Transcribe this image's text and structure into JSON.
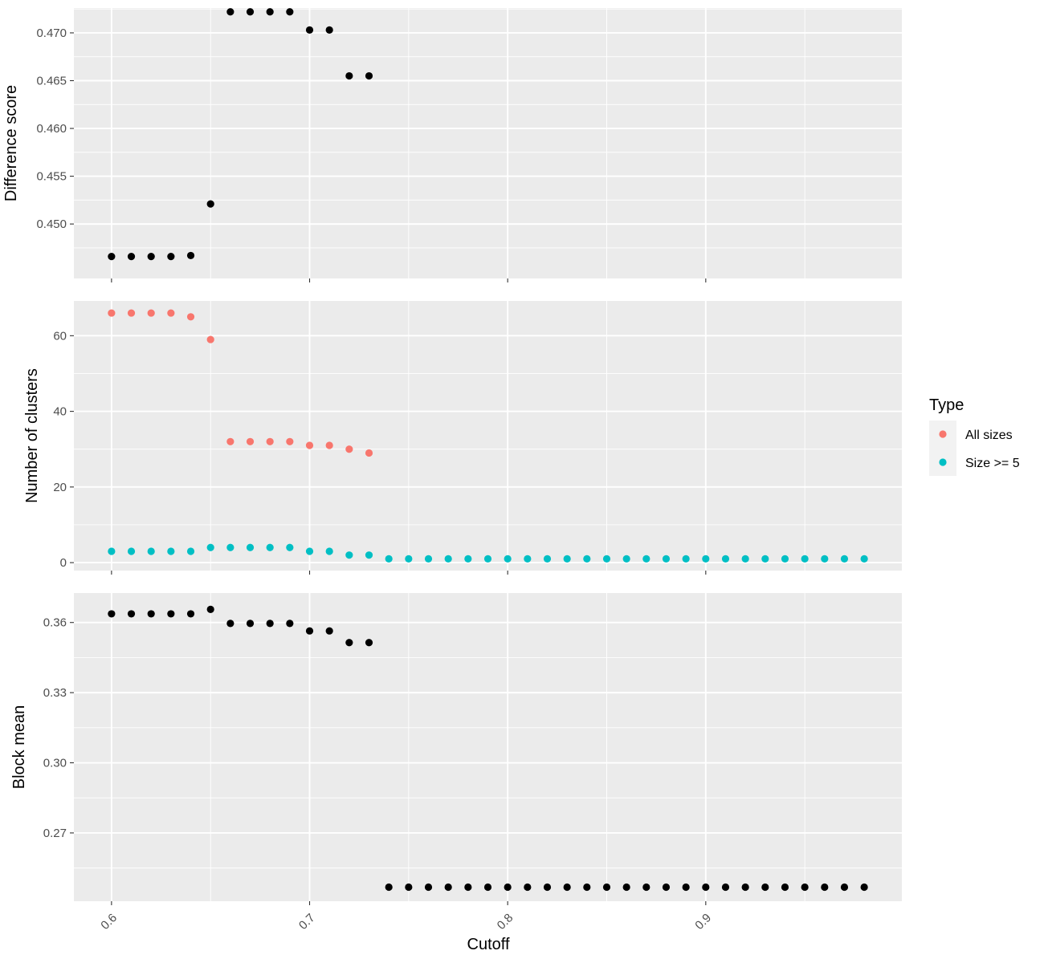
{
  "chart_data": {
    "type": "scatter",
    "xlabel": "Cutoff",
    "x_ticks": [
      0.6,
      0.7,
      0.8,
      0.9
    ],
    "x_tick_labels": [
      "0.6",
      "0.7",
      "0.8",
      "0.9"
    ],
    "xlim": [
      0.581,
      0.999
    ],
    "grid": true,
    "background": "#EBEBEB",
    "legend": {
      "title": "Type",
      "placement": "right",
      "entries": [
        {
          "label": "All sizes",
          "color": "#F8766D"
        },
        {
          "label": "Size >= 5",
          "color": "#00BFC4"
        }
      ]
    },
    "panels": [
      {
        "ylabel": "Difference score",
        "ylim": [
          0.4443,
          0.4726
        ],
        "y_ticks": [
          0.45,
          0.455,
          0.46,
          0.465,
          0.47
        ],
        "y_tick_labels": [
          "0.450",
          "0.455",
          "0.460",
          "0.465",
          "0.470"
        ],
        "series": [
          {
            "color": "#000000",
            "x": [
              0.6,
              0.61,
              0.62,
              0.63,
              0.64,
              0.65,
              0.66,
              0.67,
              0.68,
              0.69,
              0.7,
              0.71,
              0.72,
              0.73
            ],
            "y": [
              0.4466,
              0.4466,
              0.4466,
              0.4466,
              0.4467,
              0.4521,
              0.4722,
              0.4722,
              0.4722,
              0.4722,
              0.4703,
              0.4703,
              0.4655,
              0.4655
            ]
          }
        ]
      },
      {
        "ylabel": "Number of clusters",
        "ylim": [
          -2.1,
          69.2
        ],
        "y_ticks": [
          0,
          20,
          40,
          60
        ],
        "y_tick_labels": [
          "0",
          "20",
          "40",
          "60"
        ],
        "series": [
          {
            "name": "All sizes",
            "color": "#F8766D",
            "x": [
              0.6,
              0.61,
              0.62,
              0.63,
              0.64,
              0.65,
              0.66,
              0.67,
              0.68,
              0.69,
              0.7,
              0.71,
              0.72,
              0.73
            ],
            "y": [
              66,
              66,
              66,
              66,
              65,
              59,
              32,
              32,
              32,
              32,
              31,
              31,
              30,
              29
            ]
          },
          {
            "name": "Size >= 5",
            "color": "#00BFC4",
            "x": [
              0.6,
              0.61,
              0.62,
              0.63,
              0.64,
              0.65,
              0.66,
              0.67,
              0.68,
              0.69,
              0.7,
              0.71,
              0.72,
              0.73,
              0.74,
              0.75,
              0.76,
              0.77,
              0.78,
              0.79,
              0.8,
              0.81,
              0.82,
              0.83,
              0.84,
              0.85,
              0.86,
              0.87,
              0.88,
              0.89,
              0.9,
              0.91,
              0.92,
              0.93,
              0.94,
              0.95,
              0.96,
              0.97,
              0.98
            ],
            "y": [
              3,
              3,
              3,
              3,
              3,
              4,
              4,
              4,
              4,
              4,
              3,
              3,
              2,
              2,
              1,
              1,
              1,
              1,
              1,
              1,
              1,
              1,
              1,
              1,
              1,
              1,
              1,
              1,
              1,
              1,
              1,
              1,
              1,
              1,
              1,
              1,
              1,
              1,
              1
            ]
          }
        ]
      },
      {
        "ylabel": "Block mean",
        "ylim": [
          0.2408,
          0.3726
        ],
        "y_ticks": [
          0.27,
          0.3,
          0.33,
          0.36
        ],
        "y_tick_labels": [
          "0.27",
          "0.30",
          "0.33",
          "0.36"
        ],
        "series": [
          {
            "color": "#000000",
            "x": [
              0.6,
              0.61,
              0.62,
              0.63,
              0.64,
              0.65,
              0.66,
              0.67,
              0.68,
              0.69,
              0.7,
              0.71,
              0.72,
              0.73,
              0.74,
              0.75,
              0.76,
              0.77,
              0.78,
              0.79,
              0.8,
              0.81,
              0.82,
              0.83,
              0.84,
              0.85,
              0.86,
              0.87,
              0.88,
              0.89,
              0.9,
              0.91,
              0.92,
              0.93,
              0.94,
              0.95,
              0.96,
              0.97,
              0.98
            ],
            "y": [
              0.3637,
              0.3637,
              0.3637,
              0.3637,
              0.3637,
              0.3656,
              0.3596,
              0.3596,
              0.3596,
              0.3596,
              0.3564,
              0.3564,
              0.3514,
              0.3514,
              0.2468,
              0.2468,
              0.2468,
              0.2468,
              0.2468,
              0.2468,
              0.2468,
              0.2468,
              0.2468,
              0.2468,
              0.2468,
              0.2468,
              0.2468,
              0.2468,
              0.2468,
              0.2468,
              0.2468,
              0.2468,
              0.2468,
              0.2468,
              0.2468,
              0.2468,
              0.2468,
              0.2468,
              0.2468
            ]
          }
        ]
      }
    ]
  }
}
